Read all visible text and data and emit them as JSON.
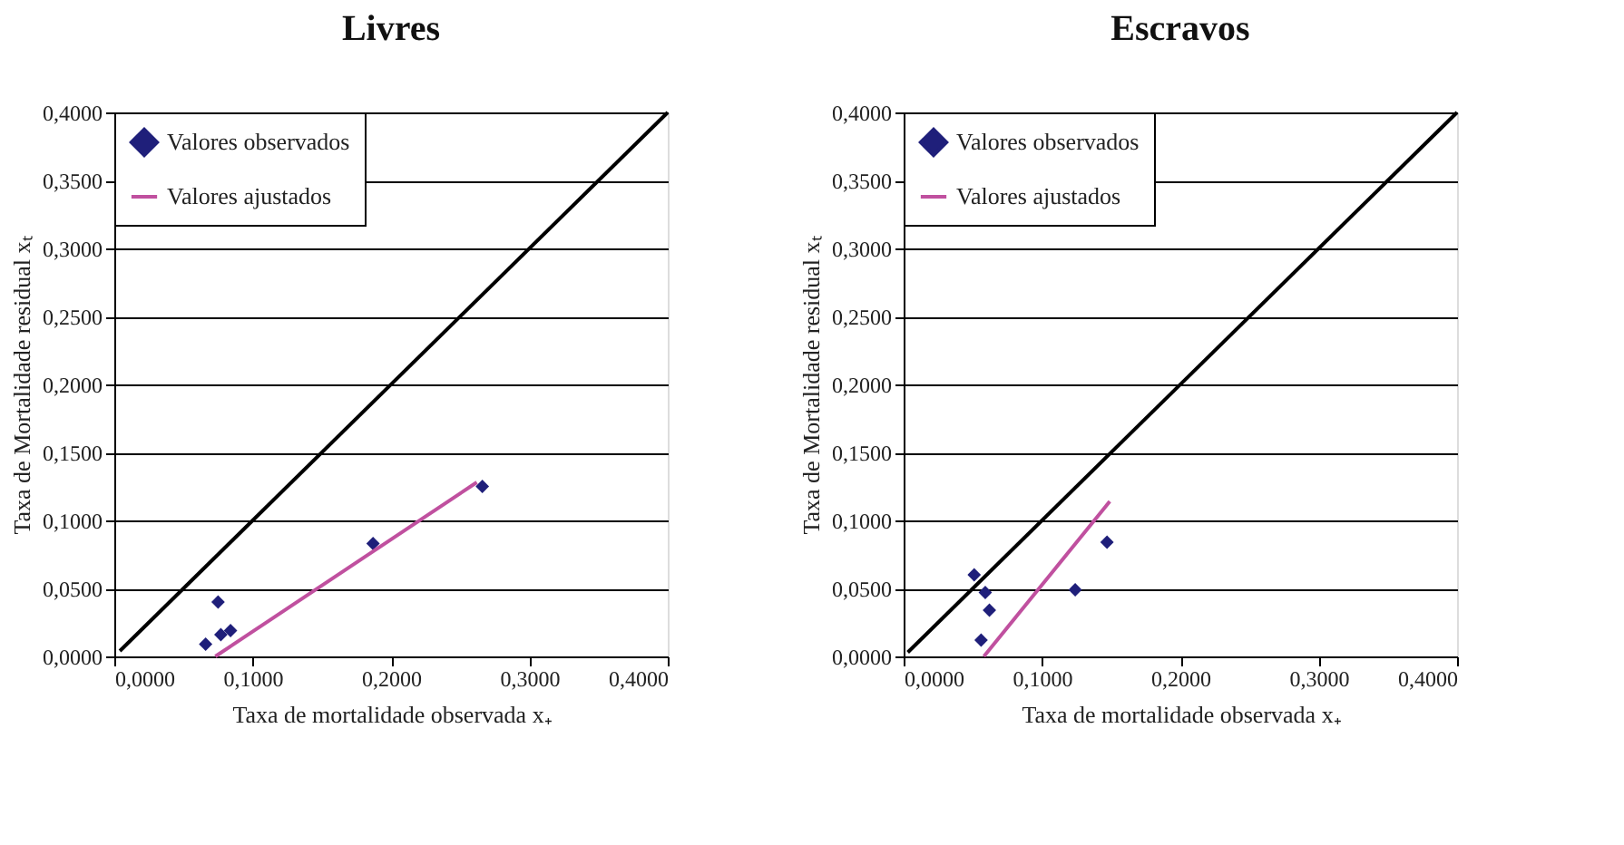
{
  "chart_data": [
    {
      "type": "scatter",
      "title": "Livres",
      "xlabel": "Taxa de mortalidade  observada x₊",
      "ylabel": "Taxa de Mortalidade  residual xₜ",
      "series": [
        {
          "name": "Valores observados",
          "marker": "diamond",
          "color": "#1f1f7a",
          "x": [
            0.066,
            0.075,
            0.077,
            0.084,
            0.187,
            0.266
          ],
          "values": [
            0.009,
            0.04,
            0.016,
            0.019,
            0.083,
            0.125
          ]
        },
        {
          "name": "Valores ajustados",
          "type": "line",
          "color": "#c0509f",
          "x": [
            0.073,
            0.262
          ],
          "values": [
            0.0,
            0.128
          ]
        },
        {
          "type": "line",
          "color": "#000000",
          "x": [
            0.004,
            0.4
          ],
          "values": [
            0.004,
            0.4
          ]
        }
      ],
      "xlim": [
        0,
        0.4
      ],
      "ylim": [
        0,
        0.4
      ],
      "xticks": [
        {
          "value": 0,
          "label": "0,0000"
        },
        {
          "value": 0.1,
          "label": "0,1000"
        },
        {
          "value": 0.2,
          "label": "0,2000"
        },
        {
          "value": 0.3,
          "label": "0,3000"
        },
        {
          "value": 0.4,
          "label": "0,4000"
        }
      ],
      "yticks": [
        {
          "value": 0,
          "label": "0,0000"
        },
        {
          "value": 0.05,
          "label": "0,0500"
        },
        {
          "value": 0.1,
          "label": "0,1000"
        },
        {
          "value": 0.15,
          "label": "0,1500"
        },
        {
          "value": 0.2,
          "label": "0,2000"
        },
        {
          "value": 0.25,
          "label": "0,2500"
        },
        {
          "value": 0.3,
          "label": "0,3000"
        },
        {
          "value": 0.35,
          "label": "0,3500"
        },
        {
          "value": 0.4,
          "label": "0,4000"
        }
      ],
      "grid": "y",
      "legend": "top left",
      "line_style": "solid"
    },
    {
      "type": "scatter",
      "title": "Escravos",
      "xlabel": "Taxa de mortalidade  observada x₊",
      "ylabel": "Taxa de Mortalidade  residual xₜ",
      "series": [
        {
          "name": "Valores observados",
          "marker": "diamond",
          "color": "#1f1f7a",
          "x": [
            0.051,
            0.059,
            0.062,
            0.056,
            0.124,
            0.147
          ],
          "values": [
            0.06,
            0.047,
            0.034,
            0.012,
            0.049,
            0.084
          ]
        },
        {
          "name": "Valores ajustados",
          "type": "line",
          "color": "#c0509f",
          "x": [
            0.058,
            0.149
          ],
          "values": [
            0.0,
            0.114
          ]
        },
        {
          "type": "line",
          "color": "#000000",
          "x": [
            0.003,
            0.4
          ],
          "values": [
            0.003,
            0.4
          ]
        }
      ],
      "xlim": [
        0,
        0.4
      ],
      "ylim": [
        0,
        0.4
      ],
      "xticks": [
        {
          "value": 0,
          "label": "0,0000"
        },
        {
          "value": 0.1,
          "label": "0,1000"
        },
        {
          "value": 0.2,
          "label": "0,2000"
        },
        {
          "value": 0.3,
          "label": "0,3000"
        },
        {
          "value": 0.4,
          "label": "0,4000"
        }
      ],
      "yticks": [
        {
          "value": 0,
          "label": "0,0000"
        },
        {
          "value": 0.05,
          "label": "0,0500"
        },
        {
          "value": 0.1,
          "label": "0,1000"
        },
        {
          "value": 0.15,
          "label": "0,1500"
        },
        {
          "value": 0.2,
          "label": "0,2000"
        },
        {
          "value": 0.25,
          "label": "0,2500"
        },
        {
          "value": 0.3,
          "label": "0,3000"
        },
        {
          "value": 0.35,
          "label": "0,3500"
        },
        {
          "value": 0.4,
          "label": "0,4000"
        }
      ],
      "grid": "y",
      "legend": "top left",
      "line_style": "solid"
    }
  ]
}
